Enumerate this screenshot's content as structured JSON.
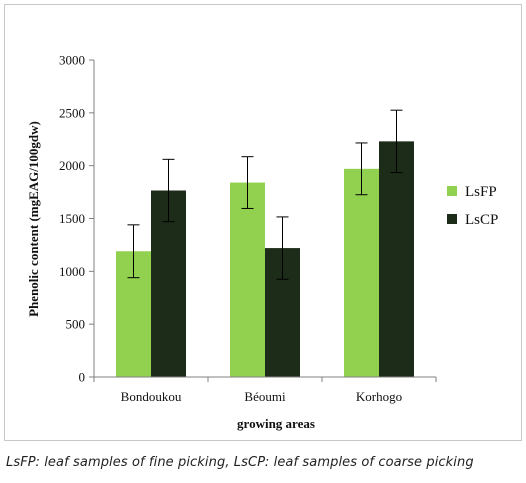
{
  "chart_data": {
    "type": "bar",
    "categories": [
      "Bondoukou",
      "Béoumi",
      "Korhogo"
    ],
    "series": [
      {
        "name": "LsFP",
        "color": "#92d050",
        "values": [
          1190,
          1840,
          1970
        ],
        "errors": [
          250,
          245,
          245
        ]
      },
      {
        "name": "LsCP",
        "color": "#1d2b19",
        "values": [
          1765,
          1220,
          2230
        ],
        "errors": [
          295,
          295,
          295
        ]
      }
    ],
    "ylabel": "Phenolic content (mgEAG/100gdw)",
    "xlabel": "growing areas",
    "ylim": [
      0,
      3000
    ],
    "yticks": [
      0,
      500,
      1000,
      1500,
      2000,
      2500,
      3000
    ],
    "grid": false,
    "legend_position": "right"
  },
  "caption": "LsFP: leaf samples of fine picking, LsCP: leaf samples of coarse picking"
}
